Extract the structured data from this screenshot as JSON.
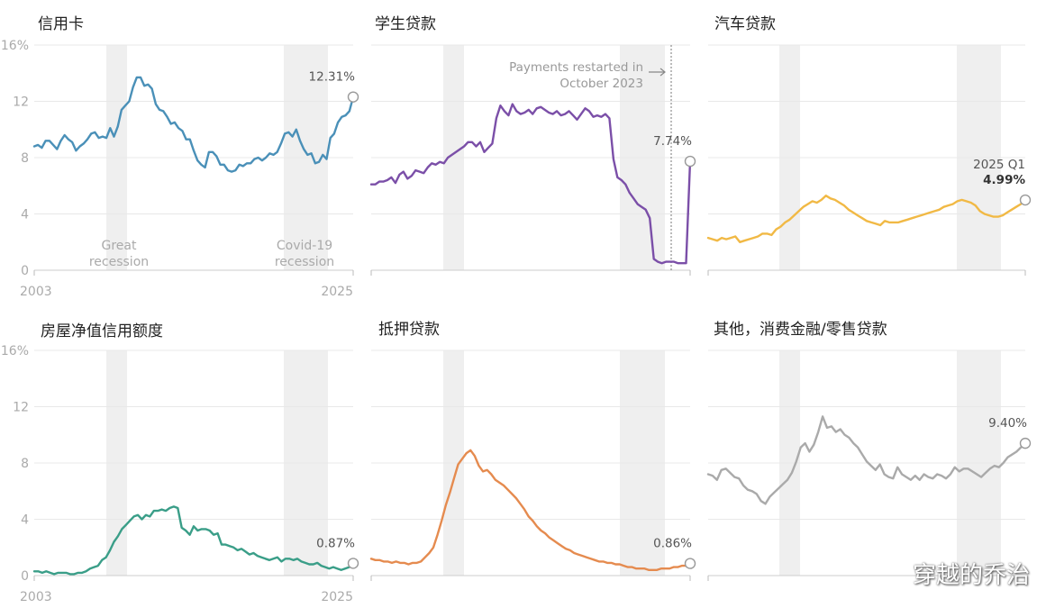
{
  "watermark": "穿越的乔治",
  "chart_data": [
    {
      "type": "line",
      "title": "信用卡",
      "color": "#4a90b8",
      "ylim": [
        0,
        16
      ],
      "yticks": [
        "0",
        "4",
        "8",
        "12",
        "16%"
      ],
      "xticks": [
        "2003",
        "2025"
      ],
      "recessions": [
        {
          "label": [
            "Great",
            "recession"
          ]
        },
        {
          "label": [
            "Covid-19",
            "recession"
          ]
        }
      ],
      "end_label": "12.31%",
      "series": [
        {
          "values": [
            8.8,
            8.9,
            8.7,
            9.2,
            9.2,
            8.9,
            8.6,
            9.2,
            9.6,
            9.3,
            9.1,
            8.5,
            8.8,
            9.0,
            9.3,
            9.7,
            9.8,
            9.4,
            9.5,
            9.4,
            10.1,
            9.5,
            10.2,
            11.4,
            11.7,
            12.0,
            13.0,
            13.7,
            13.7,
            13.1,
            13.2,
            12.9,
            11.8,
            11.4,
            11.3,
            10.9,
            10.4,
            10.5,
            10.1,
            9.9,
            9.3,
            9.3,
            8.5,
            7.8,
            7.5,
            7.3,
            8.4,
            8.4,
            8.1,
            7.5,
            7.5,
            7.1,
            7.0,
            7.1,
            7.5,
            7.4,
            7.6,
            7.6,
            7.9,
            8.0,
            7.8,
            8.0,
            8.3,
            8.2,
            8.4,
            9.0,
            9.7,
            9.8,
            9.5,
            10.0,
            9.2,
            8.6,
            8.2,
            8.3,
            7.6,
            7.7,
            8.2,
            7.9,
            9.4,
            9.7,
            10.5,
            10.9,
            11.0,
            11.3,
            12.31
          ]
        }
      ]
    },
    {
      "type": "line",
      "title": "学生贷款",
      "color": "#7b4fa8",
      "ylim": [
        0,
        16
      ],
      "annotation": [
        "Payments restarted in",
        "October 2023"
      ],
      "end_label": "7.74%",
      "series": [
        {
          "values": [
            6.1,
            6.1,
            6.3,
            6.3,
            6.4,
            6.6,
            6.2,
            6.8,
            7.0,
            6.5,
            6.7,
            7.1,
            7.0,
            6.9,
            7.3,
            7.6,
            7.5,
            7.7,
            7.6,
            8.0,
            8.2,
            8.4,
            8.6,
            8.8,
            9.1,
            9.1,
            8.8,
            9.1,
            8.4,
            8.7,
            9.0,
            10.8,
            11.7,
            11.3,
            11.0,
            11.8,
            11.3,
            11.1,
            11.2,
            11.4,
            11.1,
            11.5,
            11.6,
            11.4,
            11.2,
            11.1,
            11.3,
            11.0,
            11.1,
            11.3,
            11.0,
            10.7,
            11.1,
            11.5,
            11.3,
            10.9,
            11.0,
            10.9,
            11.1,
            10.8,
            7.9,
            6.6,
            6.4,
            6.1,
            5.5,
            5.1,
            4.7,
            4.5,
            4.3,
            3.7,
            0.8,
            0.6,
            0.5,
            0.6,
            0.6,
            0.6,
            0.5,
            0.5,
            0.5,
            7.74
          ]
        }
      ]
    },
    {
      "type": "line",
      "title": "汽车贷款",
      "color": "#f1b945",
      "ylim": [
        0,
        16
      ],
      "end_label_top": "2025 Q1",
      "end_label": "4.99%",
      "series": [
        {
          "values": [
            2.3,
            2.2,
            2.1,
            2.3,
            2.2,
            2.3,
            2.4,
            2.0,
            2.1,
            2.2,
            2.3,
            2.4,
            2.6,
            2.6,
            2.5,
            2.9,
            3.1,
            3.4,
            3.6,
            3.9,
            4.2,
            4.5,
            4.7,
            4.9,
            4.8,
            5.0,
            5.3,
            5.1,
            5.0,
            4.8,
            4.6,
            4.3,
            4.1,
            3.9,
            3.7,
            3.5,
            3.4,
            3.3,
            3.2,
            3.5,
            3.4,
            3.4,
            3.4,
            3.5,
            3.6,
            3.7,
            3.8,
            3.9,
            4.0,
            4.1,
            4.2,
            4.3,
            4.5,
            4.6,
            4.7,
            4.9,
            5.0,
            4.9,
            4.8,
            4.6,
            4.2,
            4.0,
            3.9,
            3.8,
            3.8,
            3.9,
            4.1,
            4.3,
            4.5,
            4.7,
            4.99
          ]
        }
      ]
    },
    {
      "type": "line",
      "title": "房屋净值信用额度",
      "color": "#3a9e88",
      "ylim": [
        0,
        16
      ],
      "yticks": [
        "0",
        "4",
        "8",
        "12",
        "16%"
      ],
      "xticks": [
        "2003",
        "2025"
      ],
      "end_label": "0.87%",
      "series": [
        {
          "values": [
            0.3,
            0.3,
            0.2,
            0.3,
            0.2,
            0.1,
            0.2,
            0.2,
            0.2,
            0.1,
            0.1,
            0.2,
            0.2,
            0.3,
            0.5,
            0.6,
            0.7,
            1.1,
            1.3,
            1.8,
            2.4,
            2.8,
            3.3,
            3.6,
            3.9,
            4.2,
            4.3,
            4.0,
            4.3,
            4.2,
            4.6,
            4.6,
            4.7,
            4.6,
            4.8,
            4.9,
            4.8,
            3.4,
            3.2,
            2.9,
            3.5,
            3.2,
            3.3,
            3.3,
            3.2,
            2.9,
            3.0,
            2.2,
            2.2,
            2.1,
            2.0,
            1.8,
            1.9,
            1.7,
            1.5,
            1.6,
            1.4,
            1.3,
            1.2,
            1.1,
            1.2,
            1.3,
            1.0,
            1.2,
            1.2,
            1.1,
            1.2,
            1.0,
            0.9,
            0.8,
            0.8,
            0.9,
            0.7,
            0.6,
            0.5,
            0.6,
            0.5,
            0.4,
            0.5,
            0.6,
            0.87
          ]
        }
      ]
    },
    {
      "type": "line",
      "title": "抵押贷款",
      "color": "#e58b4f",
      "ylim": [
        0,
        16
      ],
      "end_label": "0.86%",
      "series": [
        {
          "values": [
            1.2,
            1.1,
            1.1,
            1.0,
            1.0,
            0.9,
            1.0,
            0.9,
            0.9,
            0.8,
            0.9,
            0.9,
            1.0,
            1.3,
            1.6,
            2.0,
            2.9,
            3.9,
            5.0,
            5.9,
            6.9,
            7.9,
            8.3,
            8.7,
            8.9,
            8.5,
            7.8,
            7.4,
            7.5,
            7.2,
            6.8,
            6.6,
            6.4,
            6.1,
            5.8,
            5.5,
            5.1,
            4.7,
            4.2,
            3.9,
            3.5,
            3.2,
            3.0,
            2.7,
            2.5,
            2.3,
            2.1,
            1.9,
            1.8,
            1.6,
            1.5,
            1.4,
            1.3,
            1.2,
            1.1,
            1.0,
            1.0,
            0.9,
            0.9,
            0.8,
            0.8,
            0.7,
            0.6,
            0.6,
            0.5,
            0.5,
            0.5,
            0.4,
            0.4,
            0.4,
            0.5,
            0.5,
            0.5,
            0.6,
            0.6,
            0.7,
            0.7,
            0.86
          ]
        }
      ]
    },
    {
      "type": "line",
      "title": "其他，消费金融/零售贷款",
      "color": "#aaaaaa",
      "ylim": [
        0,
        16
      ],
      "end_label": "9.40%",
      "series": [
        {
          "values": [
            7.2,
            7.1,
            6.8,
            7.5,
            7.6,
            7.3,
            7.0,
            6.9,
            6.4,
            6.1,
            6.0,
            5.8,
            5.3,
            5.1,
            5.6,
            5.9,
            6.2,
            6.5,
            6.8,
            7.3,
            8.1,
            9.1,
            9.4,
            8.8,
            9.3,
            10.2,
            11.3,
            10.5,
            10.6,
            10.2,
            10.4,
            10.0,
            9.8,
            9.4,
            9.1,
            8.6,
            8.1,
            7.8,
            7.5,
            7.9,
            7.2,
            7.0,
            6.9,
            7.7,
            7.2,
            7.0,
            6.8,
            7.1,
            6.8,
            7.2,
            7.0,
            6.9,
            7.2,
            7.1,
            6.9,
            7.2,
            7.7,
            7.4,
            7.6,
            7.6,
            7.4,
            7.2,
            7.0,
            7.3,
            7.6,
            7.8,
            7.7,
            8.0,
            8.4,
            8.6,
            8.8,
            9.1,
            9.4
          ]
        }
      ]
    }
  ]
}
